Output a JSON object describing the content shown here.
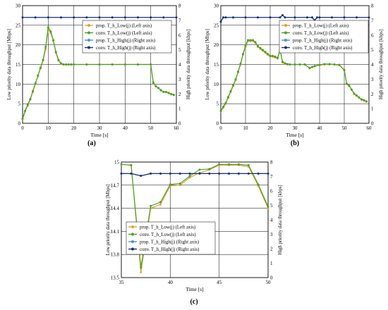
{
  "colors": {
    "prop_low": "#e0a030",
    "conv_low": "#4aa02c",
    "prop_high": "#4a90d9",
    "conv_high": "#1f2f7a"
  },
  "chart_data": [
    {
      "type": "line",
      "panel_label": "(a)",
      "xlabel": "Time [s]",
      "ylabel": "Low priority data throughput [Mbps]",
      "ylabel_right": "High priority data throughput [kbps]",
      "xlim": [
        0,
        60
      ],
      "ylim": [
        0,
        30
      ],
      "ylim_right": [
        0,
        8
      ],
      "xticks": [
        "0",
        "10",
        "20",
        "30",
        "40",
        "50",
        "60"
      ],
      "yticks": [
        "0",
        "5",
        "10",
        "15",
        "20",
        "25",
        "30"
      ],
      "yticks_right": [
        "0",
        "1",
        "2",
        "3",
        "4",
        "5",
        "6",
        "7",
        "8"
      ],
      "grid": true,
      "legend_position": "right",
      "series": [
        {
          "name": "prop. T_h_Low(j) (Left axis)",
          "axis": "left",
          "color": "#e0a030",
          "x": [
            0,
            1,
            2,
            3,
            4,
            5,
            6,
            7,
            8,
            9,
            10,
            11,
            12,
            13,
            14,
            15,
            16,
            17,
            18,
            19,
            20,
            25,
            30,
            35,
            40,
            45,
            50,
            51,
            52,
            53,
            54,
            55,
            56,
            57,
            58,
            59
          ],
          "y": [
            1,
            3,
            4.5,
            6,
            8,
            10,
            12,
            14,
            16,
            19,
            24,
            23,
            21,
            18,
            16,
            15.2,
            15,
            15,
            15,
            15,
            15,
            15,
            15,
            15,
            15,
            15,
            15,
            10.5,
            9.5,
            9,
            8.5,
            8,
            8,
            7.8,
            7.5,
            7.3
          ]
        },
        {
          "name": "conv. T_h_Low(j) (Left axis)",
          "axis": "left",
          "color": "#4aa02c",
          "x": [
            0,
            1,
            2,
            3,
            4,
            5,
            6,
            7,
            8,
            9,
            10,
            11,
            12,
            13,
            14,
            15,
            16,
            17,
            18,
            19,
            20,
            25,
            30,
            35,
            40,
            45,
            50,
            51,
            52,
            53,
            54,
            55,
            56,
            57,
            58,
            59
          ],
          "y": [
            1.2,
            3.2,
            4.7,
            6.2,
            8.2,
            10.2,
            12.2,
            14.2,
            16.2,
            19.5,
            24.5,
            23.4,
            21.2,
            18.2,
            16.2,
            15.3,
            15,
            15,
            15,
            15,
            15,
            15,
            15,
            15,
            15,
            15,
            15,
            10.3,
            9.4,
            9,
            8.4,
            8,
            8,
            7.7,
            7.4,
            7.2
          ]
        },
        {
          "name": "prop. T_h_High(j) (Right axis)",
          "axis": "right",
          "color": "#4a90d9",
          "x": [
            0,
            5,
            10,
            15,
            20,
            25,
            30,
            35,
            40,
            45,
            50,
            55,
            60
          ],
          "y": [
            7.2,
            7.2,
            7.2,
            7.2,
            7.2,
            7.2,
            7.2,
            7.2,
            7.2,
            7.2,
            7.2,
            7.2,
            7.2
          ]
        },
        {
          "name": "conv. T_h_High(j) (Right axis)",
          "axis": "right",
          "color": "#1f2f7a",
          "x": [
            0,
            5,
            10,
            15,
            20,
            25,
            30,
            35,
            40,
            45,
            50,
            55,
            60
          ],
          "y": [
            7.2,
            7.2,
            7.2,
            7.2,
            7.2,
            7.2,
            7.2,
            7.2,
            7.2,
            7.2,
            7.2,
            7.2,
            7.2
          ]
        }
      ]
    },
    {
      "type": "line",
      "panel_label": "(b)",
      "xlabel": "Time [s]",
      "ylabel": "Low priority data throughput [Mbps]",
      "ylabel_right": "High priority data throughput [kbps]",
      "xlim": [
        0,
        60
      ],
      "ylim": [
        0,
        30
      ],
      "ylim_right": [
        0,
        8
      ],
      "xticks": [
        "0",
        "10",
        "20",
        "30",
        "40",
        "50",
        "60"
      ],
      "yticks": [
        "0",
        "5",
        "10",
        "15",
        "20",
        "25",
        "30"
      ],
      "yticks_right": [
        "0",
        "1",
        "2",
        "3",
        "4",
        "5",
        "6",
        "7",
        "8"
      ],
      "grid": true,
      "legend_position": "right",
      "series": [
        {
          "name": "prop. T_h_Low(j) (Left axis)",
          "axis": "left",
          "color": "#e0a030",
          "x": [
            0,
            1,
            2,
            3,
            4,
            5,
            6,
            7,
            8,
            9,
            10,
            11,
            12,
            13,
            14,
            15,
            16,
            17,
            18,
            19,
            20,
            21,
            22,
            23,
            24,
            25,
            26,
            27,
            28,
            30,
            32,
            34,
            36,
            37,
            38,
            40,
            42,
            44,
            46,
            48,
            50,
            51,
            52,
            53,
            54,
            55,
            56,
            57,
            58,
            59
          ],
          "y": [
            3,
            4,
            5,
            6.5,
            8,
            9.5,
            11,
            13,
            15,
            17.5,
            19.5,
            21,
            21,
            21,
            20.5,
            19.5,
            19,
            18.5,
            18,
            17.5,
            17,
            17,
            16.8,
            16.5,
            18.5,
            15.5,
            15.2,
            15,
            15,
            15,
            15,
            15,
            14,
            14.3,
            14.5,
            14.8,
            15,
            15,
            15,
            14.8,
            13.5,
            10,
            9.5,
            8.5,
            7.5,
            7,
            6.5,
            6,
            5.8,
            5.5
          ]
        },
        {
          "name": "conv. T_h_Low(j) (Left axis)",
          "axis": "left",
          "color": "#4aa02c",
          "x": [
            0,
            1,
            2,
            3,
            4,
            5,
            6,
            7,
            8,
            9,
            10,
            11,
            12,
            13,
            14,
            15,
            16,
            17,
            18,
            19,
            20,
            21,
            22,
            23,
            24,
            25,
            26,
            27,
            28,
            30,
            32,
            34,
            36,
            37,
            38,
            40,
            42,
            44,
            46,
            48,
            50,
            51,
            52,
            53,
            54,
            55,
            56,
            57,
            58,
            59
          ],
          "y": [
            3.2,
            4.2,
            5.2,
            6.7,
            8.2,
            9.7,
            11.2,
            13.2,
            15.2,
            17.7,
            19.8,
            21.2,
            21.2,
            21.2,
            20.7,
            19.7,
            19.2,
            18.7,
            18.2,
            17.7,
            17.2,
            17.2,
            17,
            16.7,
            18.8,
            15.7,
            15.3,
            15.1,
            15,
            15,
            15,
            15,
            14.1,
            14.4,
            14.6,
            14.9,
            15.1,
            15.1,
            15,
            14.9,
            13.6,
            10.1,
            9.6,
            8.6,
            7.6,
            7.1,
            6.6,
            6.1,
            5.9,
            5.6
          ]
        },
        {
          "name": "prop. T_h_High(j) (Right axis)",
          "axis": "right",
          "color": "#4a90d9",
          "x": [
            0,
            1,
            2,
            5,
            10,
            15,
            20,
            24,
            25,
            26,
            30,
            35,
            37,
            38,
            39,
            40,
            45,
            50,
            55,
            60
          ],
          "y": [
            6.9,
            7.2,
            7.2,
            7.2,
            7.2,
            7.2,
            7.2,
            7.2,
            7.35,
            7.2,
            7.2,
            7.2,
            7.2,
            7.0,
            7.2,
            7.2,
            7.2,
            7.2,
            7.2,
            7.2
          ]
        },
        {
          "name": "conv. T_h_High(j) (Right axis)",
          "axis": "right",
          "color": "#1f2f7a",
          "x": [
            0,
            1,
            2,
            5,
            10,
            15,
            20,
            24,
            25,
            26,
            30,
            35,
            37,
            38,
            39,
            40,
            45,
            50,
            55,
            60
          ],
          "y": [
            6.9,
            7.2,
            7.2,
            7.2,
            7.2,
            7.2,
            7.2,
            7.2,
            7.35,
            7.2,
            7.2,
            7.2,
            7.2,
            7.0,
            7.2,
            7.2,
            7.2,
            7.2,
            7.2,
            7.2
          ]
        }
      ]
    },
    {
      "type": "line",
      "panel_label": "(c)",
      "xlabel": "Time [s]",
      "ylabel": "Low priority data throughput [Mbps]",
      "ylabel_right": "High priority data throughput [kbps]",
      "xlim": [
        35,
        50
      ],
      "ylim": [
        13.5,
        15
      ],
      "ylim_right": [
        0,
        8
      ],
      "xticks": [
        "35",
        "40",
        "45",
        "50"
      ],
      "yticks": [
        "13.5",
        "13.8",
        "14.1",
        "14.4",
        "14.7",
        "15"
      ],
      "yticks_right": [
        "0",
        "1",
        "2",
        "3",
        "4",
        "5",
        "6",
        "7",
        "8"
      ],
      "grid": true,
      "legend_position": "bottom-left",
      "series": [
        {
          "name": "prop. T_h_Low(j) (Left axis)",
          "axis": "left",
          "color": "#e0a030",
          "x": [
            35,
            36,
            37,
            38,
            39,
            40,
            41,
            42,
            43,
            44,
            45,
            46,
            47,
            48,
            49,
            50
          ],
          "y": [
            14.97,
            14.96,
            13.57,
            14.4,
            14.45,
            14.69,
            14.7,
            14.8,
            14.86,
            14.9,
            14.96,
            14.96,
            14.96,
            14.94,
            14.69,
            14.4
          ]
        },
        {
          "name": "conv. T_h_Low(j) (Left axis)",
          "axis": "left",
          "color": "#4aa02c",
          "x": [
            35,
            36,
            37,
            38,
            39,
            40,
            41,
            42,
            43,
            44,
            45,
            46,
            47,
            48,
            49,
            50
          ],
          "y": [
            14.97,
            14.96,
            13.63,
            14.43,
            14.48,
            14.71,
            14.72,
            14.82,
            14.9,
            14.91,
            14.97,
            14.97,
            14.97,
            14.96,
            14.71,
            14.42
          ]
        },
        {
          "name": "prop. T_h_High(j) (Right axis)",
          "axis": "right",
          "color": "#4a90d9",
          "x": [
            35,
            36,
            37,
            38,
            39,
            40,
            41,
            42,
            43,
            44,
            45,
            46,
            47,
            48,
            49,
            50
          ],
          "y": [
            7.2,
            7.2,
            7.05,
            7.2,
            7.2,
            7.2,
            7.2,
            7.2,
            7.2,
            7.2,
            7.2,
            7.2,
            7.2,
            7.2,
            7.2,
            7.2
          ]
        },
        {
          "name": "conv. T_h_High(j) (Right axis)",
          "axis": "right",
          "color": "#1f2f7a",
          "x": [
            35,
            36,
            37,
            38,
            39,
            40,
            41,
            42,
            43,
            44,
            45,
            46,
            47,
            48,
            49,
            50
          ],
          "y": [
            7.2,
            7.2,
            7.05,
            7.2,
            7.2,
            7.2,
            7.2,
            7.2,
            7.2,
            7.2,
            7.2,
            7.2,
            7.2,
            7.2,
            7.2,
            7.2
          ]
        }
      ]
    }
  ]
}
